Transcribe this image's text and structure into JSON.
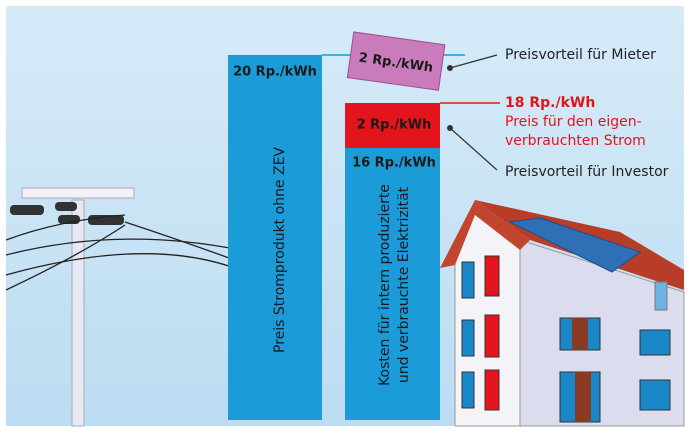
{
  "bar_grid": {
    "value": "20 Rp./kWh",
    "description": "Preis Stromprodukt ohne ZEV"
  },
  "bar_zev": {
    "value": "16 Rp./kWh",
    "description_lines": [
      "Kosten für intern produzierte",
      "und verbrauchte Elektrizität"
    ]
  },
  "tenant_advantage": {
    "value": "2 Rp./kWh",
    "label": "Preisvorteil für Mieter"
  },
  "investor_advantage": {
    "value": "2 Rp./kWh",
    "label": "Preisvorteil für Investor"
  },
  "self_consumption_price": {
    "value": "18 Rp./kWh",
    "lines": [
      "Preis für den eigen-",
      "verbrauchten Strom"
    ]
  }
}
